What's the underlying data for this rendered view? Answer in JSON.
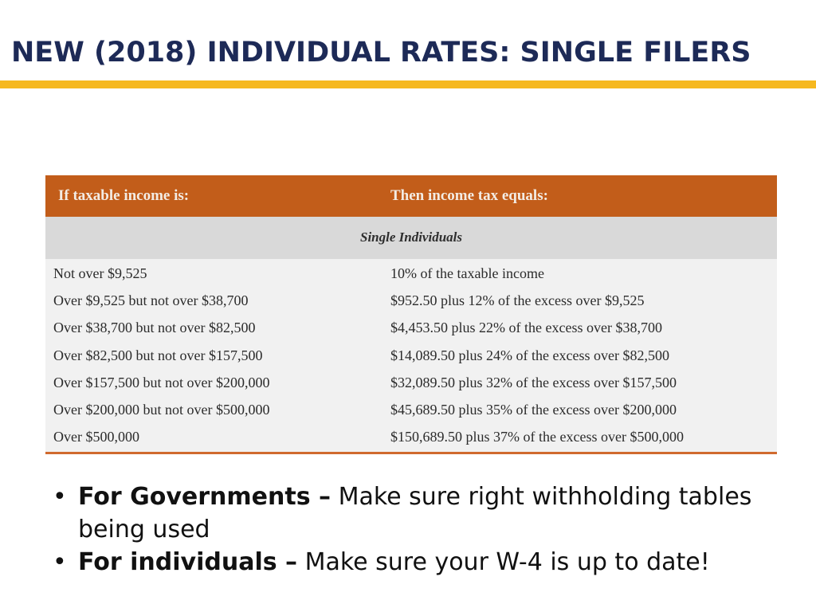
{
  "slide": {
    "title": "NEW (2018) INDIVIDUAL RATES: SINGLE FILERS"
  },
  "table": {
    "header_col1": "If taxable income is:",
    "header_col2": "Then income tax equals:",
    "subheader": "Single Individuals",
    "rows": [
      {
        "income": "Not over $9,525",
        "tax": "10% of the taxable income"
      },
      {
        "income": "Over $9,525 but not over $38,700",
        "tax": "$952.50 plus 12% of the excess over $9,525"
      },
      {
        "income": "Over $38,700 but not over $82,500",
        "tax": "$4,453.50 plus 22% of the excess over $38,700"
      },
      {
        "income": "Over $82,500 but not over $157,500",
        "tax": "$14,089.50 plus 24% of the excess over $82,500"
      },
      {
        "income": "Over $157,500 but not over $200,000",
        "tax": "$32,089.50 plus 32% of the excess over $157,500"
      },
      {
        "income": "Over $200,000 but not over $500,000",
        "tax": "$45,689.50 plus 35% of the excess over $200,000"
      },
      {
        "income": "Over $500,000",
        "tax": "$150,689.50 plus 37% of the excess over $500,000"
      }
    ]
  },
  "bullets": [
    {
      "bold": "For Governments –",
      "text": " Make sure right withholding tables being used"
    },
    {
      "bold": "For individuals –",
      "text": " Make sure your W-4 is up to date!"
    }
  ],
  "colors": {
    "title": "#1d2a57",
    "accent_rule": "#f6b81f",
    "table_header": "#c25d1a",
    "subheader_bg": "#d9d9d9"
  }
}
